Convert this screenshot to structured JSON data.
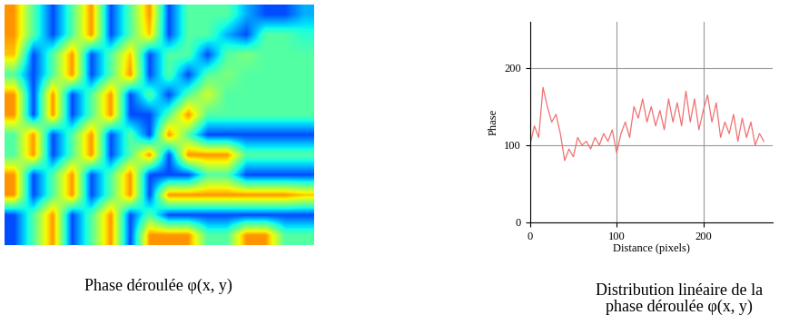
{
  "chart_data": [
    {
      "type": "heatmap",
      "caption": "Phase déroulée φ(x, y)",
      "color": "jet",
      "tick_labels": false,
      "clim": [
        0,
        1
      ],
      "cells": [
        [
          0.75,
          0.45,
          0.2,
          0.45,
          0.75,
          0.2,
          0.45,
          0.75,
          0.2,
          0.45,
          0.45,
          0.45,
          0.3,
          0.2,
          0.2,
          0.3
        ],
        [
          0.75,
          0.45,
          0.2,
          0.45,
          0.75,
          0.2,
          0.45,
          0.7,
          0.2,
          0.45,
          0.45,
          0.3,
          0.2,
          0.45,
          0.45,
          0.4
        ],
        [
          0.7,
          0.2,
          0.45,
          0.75,
          0.2,
          0.45,
          0.7,
          0.2,
          0.45,
          0.45,
          0.2,
          0.45,
          0.5,
          0.45,
          0.45,
          0.45
        ],
        [
          0.45,
          0.2,
          0.45,
          0.75,
          0.2,
          0.45,
          0.75,
          0.2,
          0.45,
          0.2,
          0.45,
          0.5,
          0.45,
          0.45,
          0.45,
          0.45
        ],
        [
          0.75,
          0.2,
          0.75,
          0.2,
          0.45,
          0.75,
          0.2,
          0.45,
          0.2,
          0.45,
          0.6,
          0.45,
          0.45,
          0.45,
          0.45,
          0.45
        ],
        [
          0.75,
          0.2,
          0.75,
          0.2,
          0.45,
          0.75,
          0.2,
          0.2,
          0.45,
          0.75,
          0.45,
          0.45,
          0.45,
          0.45,
          0.45,
          0.45
        ],
        [
          0.45,
          0.75,
          0.2,
          0.45,
          0.75,
          0.2,
          0.45,
          0.2,
          0.75,
          0.45,
          0.2,
          0.2,
          0.2,
          0.2,
          0.2,
          0.2
        ],
        [
          0.45,
          0.75,
          0.2,
          0.45,
          0.75,
          0.2,
          0.45,
          0.75,
          0.2,
          0.75,
          0.75,
          0.75,
          0.45,
          0.45,
          0.45,
          0.45
        ],
        [
          0.75,
          0.2,
          0.45,
          0.75,
          0.2,
          0.45,
          0.75,
          0.2,
          0.2,
          0.2,
          0.45,
          0.45,
          0.2,
          0.2,
          0.2,
          0.2
        ],
        [
          0.75,
          0.2,
          0.45,
          0.75,
          0.2,
          0.45,
          0.75,
          0.2,
          0.75,
          0.75,
          0.75,
          0.75,
          0.75,
          0.75,
          0.75,
          0.7
        ],
        [
          0.2,
          0.45,
          0.75,
          0.2,
          0.45,
          0.75,
          0.2,
          0.45,
          0.2,
          0.2,
          0.2,
          0.2,
          0.2,
          0.2,
          0.2,
          0.2
        ],
        [
          0.2,
          0.45,
          0.75,
          0.2,
          0.45,
          0.75,
          0.2,
          0.75,
          0.75,
          0.75,
          0.45,
          0.45,
          0.75,
          0.75,
          0.45,
          0.45
        ]
      ]
    },
    {
      "type": "line",
      "caption": "Distribution linéaire de la\nphase déroulée φ(x, y)",
      "x_label": "Distance (pixels)",
      "y_label": "Phase",
      "color": "#f07070",
      "grid": true,
      "xlim": [
        0,
        280
      ],
      "ylim": [
        0,
        260
      ],
      "xticks": [
        0,
        100,
        200
      ],
      "yticks": [
        0,
        100,
        200
      ],
      "x": [
        0,
        5,
        10,
        15,
        20,
        25,
        30,
        35,
        40,
        45,
        50,
        55,
        60,
        65,
        70,
        75,
        80,
        85,
        90,
        95,
        100,
        105,
        110,
        115,
        120,
        125,
        130,
        135,
        140,
        145,
        150,
        155,
        160,
        165,
        170,
        175,
        180,
        185,
        190,
        195,
        200,
        205,
        210,
        215,
        220,
        225,
        230,
        235,
        240,
        245,
        250,
        255,
        260,
        265,
        270
      ],
      "values": [
        100,
        125,
        110,
        175,
        150,
        130,
        140,
        115,
        80,
        95,
        85,
        110,
        100,
        105,
        95,
        110,
        100,
        115,
        105,
        120,
        90,
        115,
        130,
        110,
        150,
        135,
        160,
        130,
        150,
        125,
        145,
        120,
        160,
        130,
        155,
        125,
        170,
        130,
        160,
        120,
        145,
        165,
        130,
        155,
        110,
        130,
        115,
        140,
        105,
        135,
        110,
        130,
        100,
        115,
        105
      ]
    }
  ]
}
